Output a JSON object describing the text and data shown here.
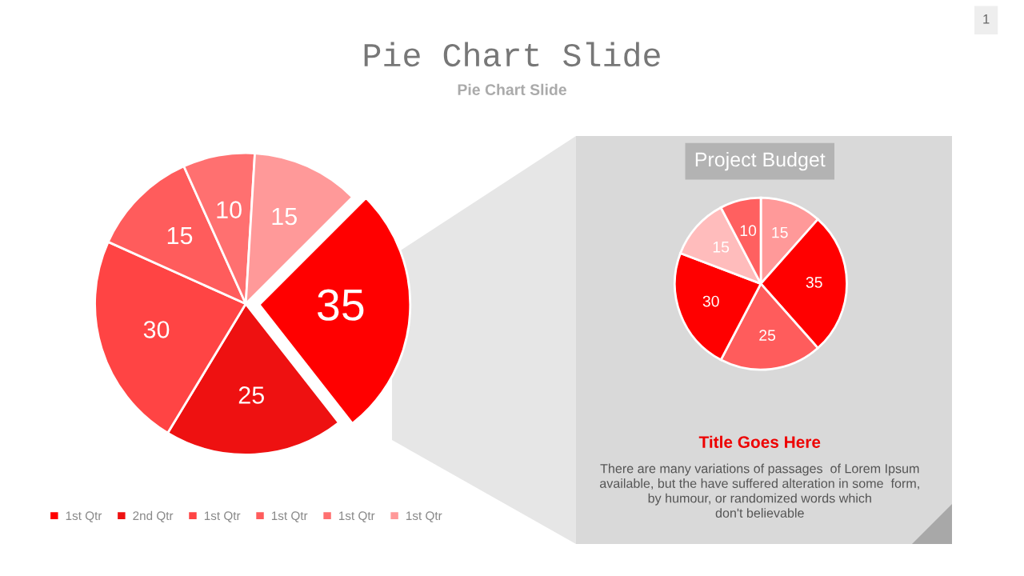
{
  "chart_data": [
    {
      "type": "pie",
      "title": "Pie Chart Slide",
      "subtitle": "Pie Chart Slide",
      "categories": [
        "1st Qtr",
        "2nd Qtr",
        "1st Qtr",
        "1st Qtr",
        "1st Qtr",
        "1st Qtr"
      ],
      "values": [
        35,
        25,
        30,
        15,
        10,
        15
      ],
      "colors": [
        "#ff0000",
        "#ee1111",
        "#ff4444",
        "#ff5c5c",
        "#ff7070",
        "#ff9999"
      ],
      "data_labels": true,
      "legend": "bottom",
      "annotations": [
        "1"
      ]
    },
    {
      "type": "pie",
      "title": "Project Budget",
      "categories": [
        null,
        null,
        null,
        null,
        null,
        null
      ],
      "values": [
        15,
        35,
        25,
        30,
        15,
        10
      ],
      "colors": [
        "#ff9999",
        "#ff0000",
        "#ff5c5c",
        "#ff0000",
        "#ffbcbc",
        "#ff6060"
      ],
      "data_labels": true,
      "annotations": [
        "Title Goes Here",
        "There are many variations of passages  of Lorem Ipsum\navailable, but the have suffered alteration in some  form,\nby humour, or randomized words which\ndon't believable"
      ]
    }
  ]
}
